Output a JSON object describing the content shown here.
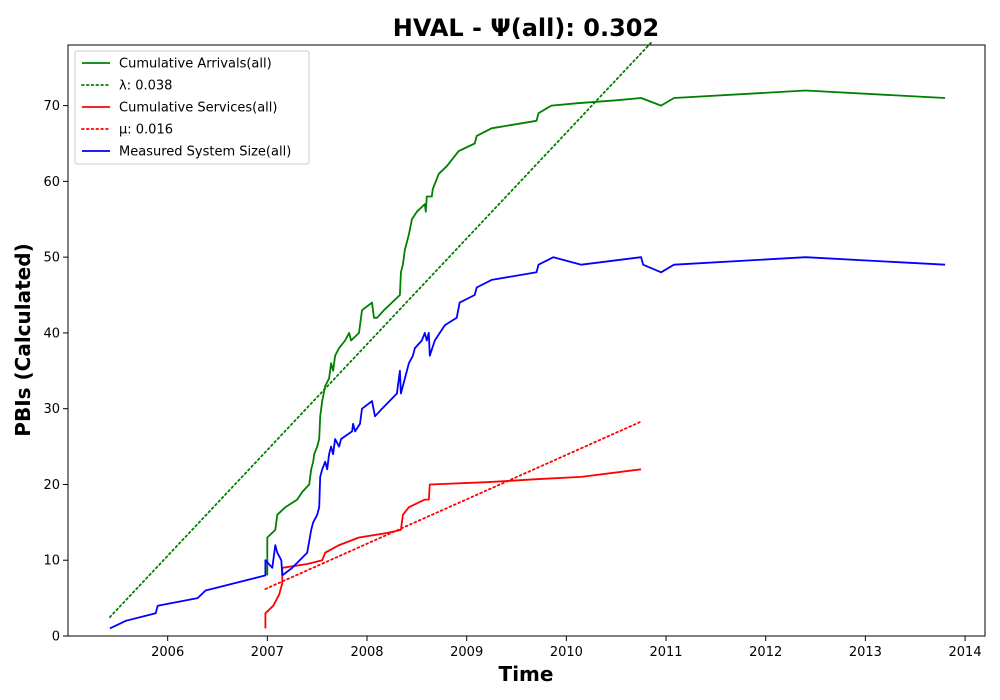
{
  "chart_data": {
    "type": "line",
    "title": "HVAL -  Ψ(all): 0.302",
    "xlabel": "Time",
    "ylabel": "PBIs (Calculated)",
    "xlim": [
      2005.0,
      2014.2
    ],
    "ylim": [
      0,
      78
    ],
    "x_ticks": [
      2006,
      2007,
      2008,
      2009,
      2010,
      2011,
      2012,
      2013,
      2014
    ],
    "y_ticks": [
      0,
      10,
      20,
      30,
      40,
      50,
      60,
      70
    ],
    "grid": false,
    "legend_position": "top-left",
    "series": [
      {
        "name": "Cumulative Arrivals(all)",
        "style": "solid",
        "color": "#008000",
        "points": [
          [
            2007.0,
            8
          ],
          [
            2007.0,
            13
          ],
          [
            2007.08,
            14
          ],
          [
            2007.1,
            16
          ],
          [
            2007.18,
            17
          ],
          [
            2007.3,
            18
          ],
          [
            2007.35,
            19
          ],
          [
            2007.42,
            20
          ],
          [
            2007.44,
            22
          ],
          [
            2007.46,
            23
          ],
          [
            2007.47,
            24
          ],
          [
            2007.5,
            25
          ],
          [
            2007.52,
            26
          ],
          [
            2007.53,
            29
          ],
          [
            2007.55,
            31
          ],
          [
            2007.58,
            33
          ],
          [
            2007.62,
            34
          ],
          [
            2007.63,
            35
          ],
          [
            2007.64,
            36
          ],
          [
            2007.66,
            35
          ],
          [
            2007.68,
            37
          ],
          [
            2007.72,
            38
          ],
          [
            2007.78,
            39
          ],
          [
            2007.82,
            40
          ],
          [
            2007.84,
            39
          ],
          [
            2007.92,
            40
          ],
          [
            2007.95,
            43
          ],
          [
            2008.05,
            44
          ],
          [
            2008.07,
            42
          ],
          [
            2008.1,
            42
          ],
          [
            2008.17,
            43
          ],
          [
            2008.25,
            44
          ],
          [
            2008.33,
            45
          ],
          [
            2008.34,
            48
          ],
          [
            2008.36,
            49
          ],
          [
            2008.38,
            51
          ],
          [
            2008.4,
            52
          ],
          [
            2008.42,
            53
          ],
          [
            2008.45,
            55
          ],
          [
            2008.5,
            56
          ],
          [
            2008.58,
            57
          ],
          [
            2008.59,
            56
          ],
          [
            2008.6,
            58
          ],
          [
            2008.65,
            58
          ],
          [
            2008.66,
            59
          ],
          [
            2008.72,
            61
          ],
          [
            2008.8,
            62
          ],
          [
            2008.92,
            64
          ],
          [
            2009.08,
            65
          ],
          [
            2009.1,
            66
          ],
          [
            2009.25,
            67
          ],
          [
            2009.7,
            68
          ],
          [
            2009.72,
            69
          ],
          [
            2009.85,
            70
          ],
          [
            2010.1,
            70.3
          ],
          [
            2010.5,
            70.7
          ],
          [
            2010.75,
            71
          ],
          [
            2010.95,
            70
          ],
          [
            2011.08,
            71
          ],
          [
            2012.4,
            72
          ],
          [
            2013.8,
            71
          ]
        ]
      },
      {
        "name": "λ: 0.038",
        "style": "dotted",
        "color": "#008000",
        "points": [
          [
            2005.42,
            2.5
          ],
          [
            2010.85,
            78.3
          ]
        ]
      },
      {
        "name": "Cumulative Services(all)",
        "style": "solid",
        "color": "#ff0000",
        "points": [
          [
            2006.98,
            1
          ],
          [
            2006.98,
            3
          ],
          [
            2007.06,
            4
          ],
          [
            2007.12,
            5.5
          ],
          [
            2007.15,
            7
          ],
          [
            2007.15,
            9
          ],
          [
            2007.4,
            9.5
          ],
          [
            2007.55,
            10
          ],
          [
            2007.58,
            11
          ],
          [
            2007.72,
            12
          ],
          [
            2007.92,
            13
          ],
          [
            2008.2,
            13.6
          ],
          [
            2008.34,
            14
          ],
          [
            2008.36,
            16
          ],
          [
            2008.42,
            17
          ],
          [
            2008.58,
            18
          ],
          [
            2008.62,
            18
          ],
          [
            2008.63,
            20
          ],
          [
            2009.2,
            20.3
          ],
          [
            2009.7,
            20.7
          ],
          [
            2010.15,
            21
          ],
          [
            2010.75,
            22
          ]
        ]
      },
      {
        "name": "μ: 0.016",
        "style": "dotted",
        "color": "#ff0000",
        "points": [
          [
            2006.98,
            6.2
          ],
          [
            2010.75,
            28.3
          ]
        ]
      },
      {
        "name": "Measured System Size(all)",
        "style": "solid",
        "color": "#0000ff",
        "points": [
          [
            2005.42,
            1
          ],
          [
            2005.58,
            2
          ],
          [
            2005.88,
            3
          ],
          [
            2005.9,
            4
          ],
          [
            2006.3,
            5
          ],
          [
            2006.38,
            6
          ],
          [
            2006.98,
            8
          ],
          [
            2006.98,
            10
          ],
          [
            2007.05,
            9
          ],
          [
            2007.08,
            12
          ],
          [
            2007.1,
            11
          ],
          [
            2007.14,
            10
          ],
          [
            2007.15,
            8
          ],
          [
            2007.25,
            9
          ],
          [
            2007.4,
            11
          ],
          [
            2007.44,
            14
          ],
          [
            2007.46,
            15
          ],
          [
            2007.5,
            16
          ],
          [
            2007.52,
            17
          ],
          [
            2007.53,
            21
          ],
          [
            2007.55,
            22
          ],
          [
            2007.58,
            23
          ],
          [
            2007.6,
            22
          ],
          [
            2007.62,
            24
          ],
          [
            2007.64,
            25
          ],
          [
            2007.66,
            24
          ],
          [
            2007.68,
            26
          ],
          [
            2007.72,
            25
          ],
          [
            2007.74,
            26
          ],
          [
            2007.85,
            27
          ],
          [
            2007.86,
            28
          ],
          [
            2007.88,
            27
          ],
          [
            2007.93,
            28
          ],
          [
            2007.95,
            30
          ],
          [
            2008.05,
            31
          ],
          [
            2008.08,
            29
          ],
          [
            2008.15,
            30
          ],
          [
            2008.3,
            32
          ],
          [
            2008.33,
            35
          ],
          [
            2008.34,
            32
          ],
          [
            2008.38,
            34
          ],
          [
            2008.42,
            36
          ],
          [
            2008.46,
            37
          ],
          [
            2008.48,
            38
          ],
          [
            2008.55,
            39
          ],
          [
            2008.58,
            40
          ],
          [
            2008.6,
            39
          ],
          [
            2008.62,
            40
          ],
          [
            2008.63,
            37
          ],
          [
            2008.68,
            39
          ],
          [
            2008.78,
            41
          ],
          [
            2008.9,
            42
          ],
          [
            2008.93,
            44
          ],
          [
            2009.08,
            45
          ],
          [
            2009.1,
            46
          ],
          [
            2009.25,
            47
          ],
          [
            2009.7,
            48
          ],
          [
            2009.72,
            49
          ],
          [
            2009.87,
            50
          ],
          [
            2010.15,
            49
          ],
          [
            2010.75,
            50
          ],
          [
            2010.77,
            49
          ],
          [
            2010.95,
            48
          ],
          [
            2011.08,
            49
          ],
          [
            2012.4,
            50
          ],
          [
            2013.8,
            49
          ]
        ]
      }
    ]
  }
}
